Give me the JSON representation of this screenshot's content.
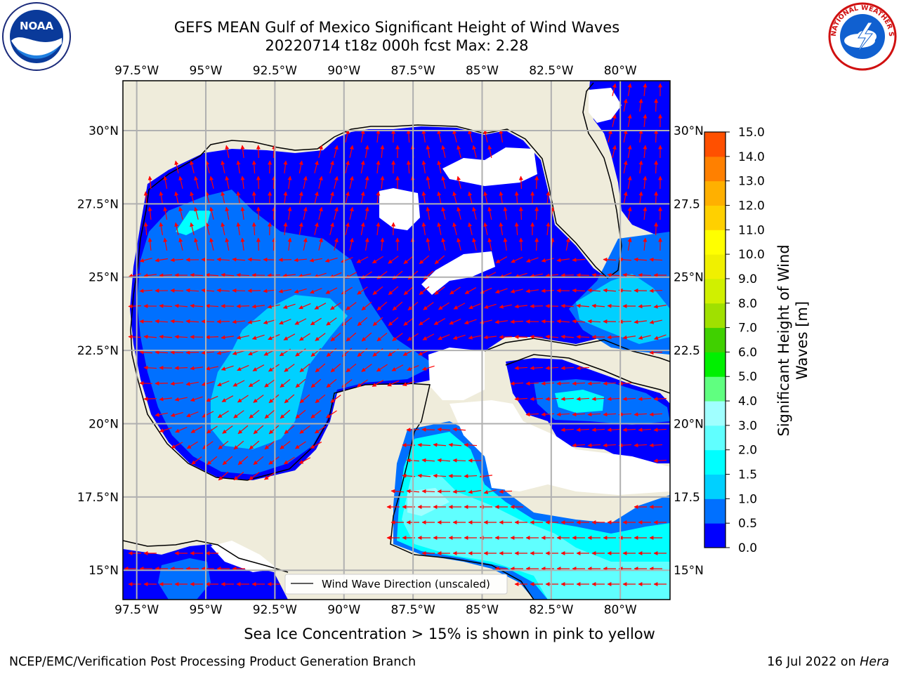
{
  "header": {
    "title_line1": "GEFS MEAN Gulf of Mexico Significant Height of Wind Waves",
    "title_line2": "20220714 t18z 000h fcst   Max: 2.28"
  },
  "logos": {
    "noaa": {
      "icon": "noaa-logo",
      "text": "NOAA"
    },
    "nws": {
      "icon": "national-weather-service-logo",
      "text": "NATIONAL WEATHER SERVICE"
    }
  },
  "map": {
    "lon_ticks": [
      "97.5°W",
      "95°W",
      "92.5°W",
      "90°W",
      "87.5°W",
      "85°W",
      "82.5°W",
      "80°W"
    ],
    "lat_ticks_left": [
      "30°N",
      "27.5°N",
      "25°N",
      "22.5°N",
      "20°N",
      "17.5°N",
      "15°N"
    ],
    "lat_ticks_right": [
      "30°N",
      "27.5",
      "25°N",
      "22.5",
      "20°N",
      "17.5",
      "15°N"
    ],
    "lon_values": [
      -97.5,
      -95,
      -92.5,
      -90,
      -87.5,
      -85,
      -82.5,
      -80
    ],
    "lat_values": [
      30,
      27.5,
      25,
      22.5,
      20,
      17.5,
      15
    ],
    "extent": {
      "lon_min": -98,
      "lon_max": -78.2,
      "lat_min": 14,
      "lat_max": 31.7
    },
    "land_color": "#efecdb",
    "grid": true,
    "legend": {
      "label": "Wind Wave Direction (unscaled)",
      "placement": "lower-center"
    },
    "arrow_color": "#ff0000",
    "max_value": "2.28"
  },
  "colorbar": {
    "title_line1": "Significant Height of Wind",
    "title_line2": "Waves [m]",
    "tick_labels": [
      "0.0",
      "0.5",
      "1.0",
      "1.5",
      "2.0",
      "3.0",
      "4.0",
      "5.0",
      "6.0",
      "7.0",
      "8.0",
      "9.0",
      "10.0",
      "11.0",
      "12.0",
      "13.0",
      "14.0",
      "15.0"
    ],
    "colors": [
      "#0000ff",
      "#0070ff",
      "#00d0ff",
      "#00ffff",
      "#60ffff",
      "#a0ffff",
      "#60ff80",
      "#00f000",
      "#40d000",
      "#a0e000",
      "#d0f000",
      "#f0f000",
      "#ffff00",
      "#ffd000",
      "#ffb000",
      "#ff8000",
      "#ff5000",
      "#ff2000",
      "#ff0000"
    ]
  },
  "footer": {
    "note": "Sea Ice Concentration > 15% is shown in pink to yellow",
    "credit_left": "NCEP/EMC/Verification Post Processing Product Generation Branch",
    "credit_date": "16 Jul 2022 on ",
    "credit_host": "Hera"
  }
}
